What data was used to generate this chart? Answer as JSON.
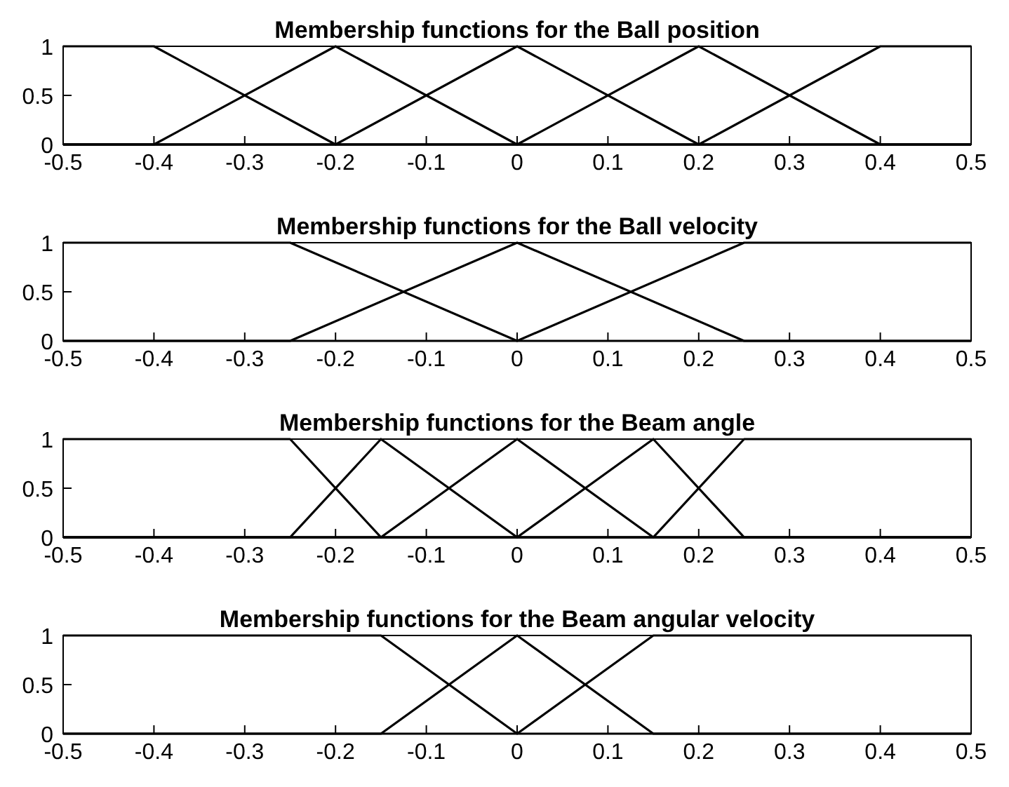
{
  "chart_data": [
    {
      "type": "line",
      "title": "Membership functions for the Ball position",
      "xlim": [
        -0.5,
        0.5
      ],
      "ylim": [
        0,
        1
      ],
      "xticks": [
        -0.5,
        -0.4,
        -0.3,
        -0.2,
        -0.1,
        0,
        0.1,
        0.2,
        0.3,
        0.4,
        0.5
      ],
      "yticks": [
        0,
        0.5,
        1
      ],
      "line_style": "solid",
      "marker": "none",
      "series": [
        {
          "color": "#000000",
          "x": [
            -0.5,
            -0.4,
            -0.2,
            0.5
          ],
          "values": [
            1,
            1,
            0,
            0
          ]
        },
        {
          "color": "#000000",
          "x": [
            -0.5,
            -0.4,
            -0.2,
            0,
            0.5
          ],
          "values": [
            0,
            0,
            1,
            0,
            0
          ]
        },
        {
          "color": "#000000",
          "x": [
            -0.5,
            -0.2,
            0,
            0.2,
            0.5
          ],
          "values": [
            0,
            0,
            1,
            0,
            0
          ]
        },
        {
          "color": "#000000",
          "x": [
            -0.5,
            0,
            0.2,
            0.4,
            0.5
          ],
          "values": [
            0,
            0,
            1,
            0,
            0
          ]
        },
        {
          "color": "#000000",
          "x": [
            -0.5,
            0.2,
            0.4,
            0.5
          ],
          "values": [
            0,
            0,
            1,
            1
          ]
        }
      ]
    },
    {
      "type": "line",
      "title": "Membership functions for the Ball velocity",
      "xlim": [
        -0.5,
        0.5
      ],
      "ylim": [
        0,
        1
      ],
      "xticks": [
        -0.5,
        -0.4,
        -0.3,
        -0.2,
        -0.1,
        0,
        0.1,
        0.2,
        0.3,
        0.4,
        0.5
      ],
      "yticks": [
        0,
        0.5,
        1
      ],
      "line_style": "solid",
      "marker": "none",
      "series": [
        {
          "color": "#000000",
          "x": [
            -0.5,
            -0.25,
            0,
            0.5
          ],
          "values": [
            1,
            1,
            0,
            0
          ]
        },
        {
          "color": "#000000",
          "x": [
            -0.5,
            -0.25,
            0,
            0.25,
            0.5
          ],
          "values": [
            0,
            0,
            1,
            0,
            0
          ]
        },
        {
          "color": "#000000",
          "x": [
            -0.5,
            0,
            0.25,
            0.5
          ],
          "values": [
            0,
            0,
            1,
            1
          ]
        }
      ]
    },
    {
      "type": "line",
      "title": "Membership functions for the Beam angle",
      "xlim": [
        -0.5,
        0.5
      ],
      "ylim": [
        0,
        1
      ],
      "xticks": [
        -0.5,
        -0.4,
        -0.3,
        -0.2,
        -0.1,
        0,
        0.1,
        0.2,
        0.3,
        0.4,
        0.5
      ],
      "yticks": [
        0,
        0.5,
        1
      ],
      "line_style": "solid",
      "marker": "none",
      "series": [
        {
          "color": "#000000",
          "x": [
            -0.5,
            -0.25,
            -0.15,
            0.5
          ],
          "values": [
            1,
            1,
            0,
            0
          ]
        },
        {
          "color": "#000000",
          "x": [
            -0.5,
            -0.25,
            -0.15,
            0,
            0.5
          ],
          "values": [
            0,
            0,
            1,
            0,
            0
          ]
        },
        {
          "color": "#000000",
          "x": [
            -0.5,
            -0.15,
            0,
            0.15,
            0.5
          ],
          "values": [
            0,
            0,
            1,
            0,
            0
          ]
        },
        {
          "color": "#000000",
          "x": [
            -0.5,
            0,
            0.15,
            0.25,
            0.5
          ],
          "values": [
            0,
            0,
            1,
            0,
            0
          ]
        },
        {
          "color": "#000000",
          "x": [
            -0.5,
            0.15,
            0.25,
            0.5
          ],
          "values": [
            0,
            0,
            1,
            1
          ]
        }
      ]
    },
    {
      "type": "line",
      "title": "Membership functions for the Beam angular velocity",
      "xlim": [
        -0.5,
        0.5
      ],
      "ylim": [
        0,
        1
      ],
      "xticks": [
        -0.5,
        -0.4,
        -0.3,
        -0.2,
        -0.1,
        0,
        0.1,
        0.2,
        0.3,
        0.4,
        0.5
      ],
      "yticks": [
        0,
        0.5,
        1
      ],
      "line_style": "solid",
      "marker": "none",
      "series": [
        {
          "color": "#000000",
          "x": [
            -0.5,
            -0.15,
            0,
            0.5
          ],
          "values": [
            1,
            1,
            0,
            0
          ]
        },
        {
          "color": "#000000",
          "x": [
            -0.5,
            -0.15,
            0,
            0.15,
            0.5
          ],
          "values": [
            0,
            0,
            1,
            0,
            0
          ]
        },
        {
          "color": "#000000",
          "x": [
            -0.5,
            0,
            0.15,
            0.5
          ],
          "values": [
            0,
            0,
            1,
            1
          ]
        }
      ]
    }
  ]
}
